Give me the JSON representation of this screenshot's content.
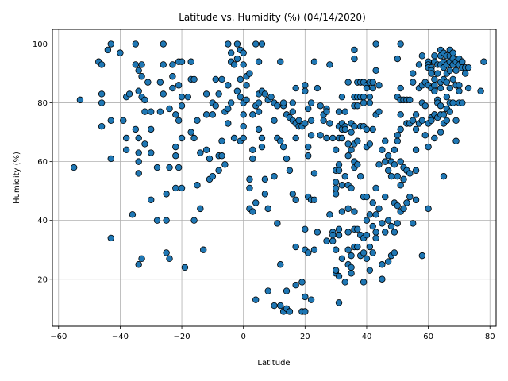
{
  "chart_data": {
    "type": "scatter",
    "title": "Latitude vs. Humidity (%) (04/14/2020)",
    "xlabel": "Latitude",
    "ylabel": "Humidity (%)",
    "xlim": [
      -62,
      82
    ],
    "ylim": [
      4,
      105
    ],
    "xticks": [
      -60,
      -40,
      -20,
      0,
      20,
      40,
      60,
      80
    ],
    "yticks": [
      20,
      40,
      60,
      80,
      100
    ],
    "grid": true,
    "marker_color": "#1f77b4",
    "edge_color": "#000000",
    "points": [
      [
        -55,
        58
      ],
      [
        -53,
        81
      ],
      [
        -47,
        94
      ],
      [
        -46,
        93
      ],
      [
        -46,
        80
      ],
      [
        -46,
        83
      ],
      [
        -46,
        72
      ],
      [
        -44,
        98
      ],
      [
        -43,
        100
      ],
      [
        -43,
        74
      ],
      [
        -43,
        61
      ],
      [
        -43,
        34
      ],
      [
        -40,
        97
      ],
      [
        -39,
        74
      ],
      [
        -38,
        82
      ],
      [
        -38,
        68
      ],
      [
        -38,
        64
      ],
      [
        -37,
        83
      ],
      [
        -36,
        42
      ],
      [
        -35,
        93
      ],
      [
        -35,
        71
      ],
      [
        -35,
        100
      ],
      [
        -34,
        25
      ],
      [
        -34,
        84
      ],
      [
        -34,
        91
      ],
      [
        -34,
        68
      ],
      [
        -34,
        63
      ],
      [
        -34,
        60
      ],
      [
        -34,
        56
      ],
      [
        -33,
        93
      ],
      [
        -33,
        89
      ],
      [
        -33,
        82
      ],
      [
        -33,
        27
      ],
      [
        -32,
        77
      ],
      [
        -32,
        66
      ],
      [
        -32,
        81
      ],
      [
        -31,
        87
      ],
      [
        -30,
        71
      ],
      [
        -30,
        77
      ],
      [
        -30,
        63
      ],
      [
        -30,
        47
      ],
      [
        -28,
        58
      ],
      [
        -28,
        40
      ],
      [
        -27,
        77
      ],
      [
        -27,
        87
      ],
      [
        -26,
        100
      ],
      [
        -26,
        93
      ],
      [
        -26,
        83
      ],
      [
        -25,
        40
      ],
      [
        -25,
        49
      ],
      [
        -25,
        29
      ],
      [
        -24,
        78
      ],
      [
        -24,
        58
      ],
      [
        -24,
        27
      ],
      [
        -23,
        85
      ],
      [
        -23,
        89
      ],
      [
        -23,
        93
      ],
      [
        -22,
        76
      ],
      [
        -22,
        65
      ],
      [
        -22,
        62
      ],
      [
        -22,
        51
      ],
      [
        -21,
        58
      ],
      [
        -21,
        86
      ],
      [
        -21,
        94
      ],
      [
        -21,
        74
      ],
      [
        -20,
        94
      ],
      [
        -20,
        68
      ],
      [
        -20,
        79
      ],
      [
        -20,
        82
      ],
      [
        -20,
        51
      ],
      [
        -19,
        24
      ],
      [
        -18,
        82
      ],
      [
        -17,
        88
      ],
      [
        -17,
        94
      ],
      [
        -17,
        70
      ],
      [
        -16,
        88
      ],
      [
        -16,
        68
      ],
      [
        -16,
        40
      ],
      [
        -15,
        52
      ],
      [
        -15,
        74
      ],
      [
        -14,
        63
      ],
      [
        -14,
        44
      ],
      [
        -13,
        30
      ],
      [
        -12,
        64
      ],
      [
        -12,
        76
      ],
      [
        -12,
        83
      ],
      [
        -11,
        54
      ],
      [
        -11,
        61
      ],
      [
        -10,
        55
      ],
      [
        -10,
        76
      ],
      [
        -10,
        80
      ],
      [
        -9,
        79
      ],
      [
        -9,
        88
      ],
      [
        -8,
        57
      ],
      [
        -8,
        62
      ],
      [
        -8,
        83
      ],
      [
        -7,
        62
      ],
      [
        -7,
        88
      ],
      [
        -7,
        67
      ],
      [
        -6,
        59
      ],
      [
        -6,
        77
      ],
      [
        -5,
        86
      ],
      [
        -5,
        100
      ],
      [
        -5,
        73
      ],
      [
        -5,
        78
      ],
      [
        -4,
        97
      ],
      [
        -4,
        94
      ],
      [
        -4,
        80
      ],
      [
        -3,
        93
      ],
      [
        -3,
        68
      ],
      [
        -2,
        95
      ],
      [
        -2,
        100
      ],
      [
        -2,
        84
      ],
      [
        -1,
        98
      ],
      [
        -1,
        88
      ],
      [
        -1,
        67
      ],
      [
        -1,
        82
      ],
      [
        0,
        97
      ],
      [
        0,
        80
      ],
      [
        0,
        93
      ],
      [
        0,
        76
      ],
      [
        0,
        72
      ],
      [
        0,
        68
      ],
      [
        1,
        86
      ],
      [
        1,
        89
      ],
      [
        1,
        81
      ],
      [
        2,
        90
      ],
      [
        2,
        44
      ],
      [
        2,
        51
      ],
      [
        2,
        54
      ],
      [
        3,
        43
      ],
      [
        3,
        64
      ],
      [
        3,
        61
      ],
      [
        3,
        76
      ],
      [
        4,
        100
      ],
      [
        4,
        46
      ],
      [
        4,
        79
      ],
      [
        4,
        13
      ],
      [
        5,
        80
      ],
      [
        5,
        83
      ],
      [
        5,
        94
      ],
      [
        5,
        77
      ],
      [
        5,
        71
      ],
      [
        6,
        100
      ],
      [
        6,
        68
      ],
      [
        6,
        65
      ],
      [
        6,
        84
      ],
      [
        7,
        49
      ],
      [
        7,
        83
      ],
      [
        7,
        54
      ],
      [
        8,
        81
      ],
      [
        8,
        44
      ],
      [
        8,
        16
      ],
      [
        9,
        82
      ],
      [
        10,
        74
      ],
      [
        10,
        55
      ],
      [
        10,
        11
      ],
      [
        10,
        80
      ],
      [
        11,
        79
      ],
      [
        11,
        68
      ],
      [
        11,
        39
      ],
      [
        12,
        11
      ],
      [
        12,
        94
      ],
      [
        12,
        25
      ],
      [
        12,
        67
      ],
      [
        13,
        79
      ],
      [
        13,
        80
      ],
      [
        13,
        65
      ],
      [
        13,
        9
      ],
      [
        14,
        10
      ],
      [
        14,
        76
      ],
      [
        14,
        61
      ],
      [
        14,
        16
      ],
      [
        15,
        75
      ],
      [
        15,
        57
      ],
      [
        15,
        9
      ],
      [
        16,
        77
      ],
      [
        16,
        74
      ],
      [
        16,
        49
      ],
      [
        16,
        80
      ],
      [
        17,
        68
      ],
      [
        17,
        85
      ],
      [
        17,
        73
      ],
      [
        17,
        31
      ],
      [
        17,
        47
      ],
      [
        17,
        18
      ],
      [
        18,
        72
      ],
      [
        18,
        74
      ],
      [
        19,
        19
      ],
      [
        19,
        9
      ],
      [
        19,
        72
      ],
      [
        20,
        86
      ],
      [
        20,
        84
      ],
      [
        20,
        37
      ],
      [
        20,
        30
      ],
      [
        20,
        14
      ],
      [
        20,
        9
      ],
      [
        20,
        73
      ],
      [
        21,
        78
      ],
      [
        21,
        62
      ],
      [
        21,
        65
      ],
      [
        21,
        48
      ],
      [
        21,
        29
      ],
      [
        22,
        74
      ],
      [
        22,
        80
      ],
      [
        22,
        69
      ],
      [
        22,
        47
      ],
      [
        22,
        13
      ],
      [
        23,
        56
      ],
      [
        23,
        94
      ],
      [
        23,
        30
      ],
      [
        23,
        47
      ],
      [
        24,
        85
      ],
      [
        24,
        36
      ],
      [
        25,
        69
      ],
      [
        25,
        79
      ],
      [
        26,
        76
      ],
      [
        26,
        74
      ],
      [
        27,
        78
      ],
      [
        27,
        77
      ],
      [
        27,
        68
      ],
      [
        27,
        33
      ],
      [
        28,
        42
      ],
      [
        28,
        93
      ],
      [
        28,
        73
      ],
      [
        29,
        68
      ],
      [
        29,
        36
      ],
      [
        29,
        33
      ],
      [
        29,
        35
      ],
      [
        30,
        53
      ],
      [
        30,
        51
      ],
      [
        30,
        49
      ],
      [
        30,
        64
      ],
      [
        30,
        57
      ],
      [
        30,
        22
      ],
      [
        30,
        23
      ],
      [
        30,
        30
      ],
      [
        31,
        72
      ],
      [
        31,
        77
      ],
      [
        31,
        68
      ],
      [
        31,
        59
      ],
      [
        31,
        37
      ],
      [
        31,
        35
      ],
      [
        31,
        57
      ],
      [
        31,
        21
      ],
      [
        31,
        12
      ],
      [
        32,
        82
      ],
      [
        32,
        73
      ],
      [
        32,
        71
      ],
      [
        32,
        68
      ],
      [
        32,
        52
      ],
      [
        32,
        43
      ],
      [
        32,
        27
      ],
      [
        33,
        72
      ],
      [
        33,
        71
      ],
      [
        33,
        77
      ],
      [
        33,
        55
      ],
      [
        33,
        19
      ],
      [
        34,
        87
      ],
      [
        34,
        66
      ],
      [
        34,
        62
      ],
      [
        34,
        52
      ],
      [
        34,
        44
      ],
      [
        34,
        36
      ],
      [
        34,
        30
      ],
      [
        34,
        25
      ],
      [
        35,
        73
      ],
      [
        35,
        70
      ],
      [
        35,
        64
      ],
      [
        35,
        51
      ],
      [
        35,
        28
      ],
      [
        35,
        24
      ],
      [
        35,
        22
      ],
      [
        36,
        95
      ],
      [
        36,
        98
      ],
      [
        36,
        82
      ],
      [
        36,
        79
      ],
      [
        36,
        72
      ],
      [
        36,
        66
      ],
      [
        36,
        60
      ],
      [
        36,
        58
      ],
      [
        36,
        43
      ],
      [
        36,
        37
      ],
      [
        36,
        31
      ],
      [
        37,
        87
      ],
      [
        37,
        82
      ],
      [
        37,
        79
      ],
      [
        37,
        67
      ],
      [
        37,
        59
      ],
      [
        37,
        37
      ],
      [
        37,
        31
      ],
      [
        38,
        87
      ],
      [
        38,
        82
      ],
      [
        38,
        72
      ],
      [
        38,
        55
      ],
      [
        38,
        35
      ],
      [
        38,
        28
      ],
      [
        39,
        87
      ],
      [
        39,
        82
      ],
      [
        39,
        80
      ],
      [
        39,
        72
      ],
      [
        39,
        48
      ],
      [
        39,
        34
      ],
      [
        39,
        29
      ],
      [
        39,
        19
      ],
      [
        40,
        86
      ],
      [
        40,
        85
      ],
      [
        40,
        71
      ],
      [
        40,
        65
      ],
      [
        40,
        48
      ],
      [
        40,
        40
      ],
      [
        40,
        35
      ],
      [
        40,
        27
      ],
      [
        41,
        87
      ],
      [
        41,
        82
      ],
      [
        41,
        80
      ],
      [
        41,
        66
      ],
      [
        41,
        42
      ],
      [
        41,
        31
      ],
      [
        41,
        23
      ],
      [
        42,
        87
      ],
      [
        42,
        85
      ],
      [
        42,
        71
      ],
      [
        42,
        46
      ],
      [
        42,
        38
      ],
      [
        42,
        29
      ],
      [
        43,
        100
      ],
      [
        43,
        91
      ],
      [
        43,
        76
      ],
      [
        43,
        51
      ],
      [
        43,
        42
      ],
      [
        43,
        36
      ],
      [
        43,
        34
      ],
      [
        44,
        86
      ],
      [
        44,
        77
      ],
      [
        44,
        59
      ],
      [
        44,
        44
      ],
      [
        45,
        64
      ],
      [
        45,
        25
      ],
      [
        45,
        20
      ],
      [
        45,
        39
      ],
      [
        46,
        67
      ],
      [
        46,
        60
      ],
      [
        46,
        48
      ],
      [
        46,
        36
      ],
      [
        47,
        62
      ],
      [
        47,
        57
      ],
      [
        47,
        40
      ],
      [
        47,
        26
      ],
      [
        48,
        60
      ],
      [
        48,
        55
      ],
      [
        48,
        38
      ],
      [
        48,
        28
      ],
      [
        49,
        64
      ],
      [
        49,
        59
      ],
      [
        49,
        46
      ],
      [
        49,
        36
      ],
      [
        49,
        29
      ],
      [
        50,
        82
      ],
      [
        50,
        95
      ],
      [
        50,
        69
      ],
      [
        50,
        67
      ],
      [
        50,
        55
      ],
      [
        50,
        45
      ],
      [
        50,
        39
      ],
      [
        51,
        100
      ],
      [
        51,
        85
      ],
      [
        51,
        81
      ],
      [
        51,
        76
      ],
      [
        51,
        71
      ],
      [
        51,
        60
      ],
      [
        51,
        52
      ],
      [
        51,
        43
      ],
      [
        52,
        81
      ],
      [
        52,
        58
      ],
      [
        52,
        54
      ],
      [
        52,
        44
      ],
      [
        53,
        81
      ],
      [
        53,
        73
      ],
      [
        53,
        57
      ],
      [
        53,
        46
      ],
      [
        54,
        81
      ],
      [
        54,
        73
      ],
      [
        54,
        56
      ],
      [
        54,
        48
      ],
      [
        55,
        90
      ],
      [
        55,
        87
      ],
      [
        55,
        74
      ],
      [
        55,
        39
      ],
      [
        56,
        76
      ],
      [
        56,
        71
      ],
      [
        56,
        64
      ],
      [
        56,
        57
      ],
      [
        56,
        47
      ],
      [
        57,
        93
      ],
      [
        57,
        85
      ],
      [
        57,
        73
      ],
      [
        58,
        96
      ],
      [
        58,
        86
      ],
      [
        58,
        80
      ],
      [
        58,
        74
      ],
      [
        58,
        28
      ],
      [
        59,
        87
      ],
      [
        59,
        79
      ],
      [
        59,
        69
      ],
      [
        60,
        94
      ],
      [
        60,
        93
      ],
      [
        60,
        92
      ],
      [
        60,
        86
      ],
      [
        60,
        73
      ],
      [
        60,
        65
      ],
      [
        60,
        44
      ],
      [
        61,
        92
      ],
      [
        61,
        91
      ],
      [
        61,
        90
      ],
      [
        61,
        85
      ],
      [
        61,
        75
      ],
      [
        61,
        74
      ],
      [
        62,
        96
      ],
      [
        62,
        94
      ],
      [
        62,
        88
      ],
      [
        62,
        86
      ],
      [
        62,
        84
      ],
      [
        62,
        76
      ],
      [
        62,
        68
      ],
      [
        63,
        93
      ],
      [
        63,
        90
      ],
      [
        63,
        81
      ],
      [
        63,
        80
      ],
      [
        63,
        75
      ],
      [
        64,
        98
      ],
      [
        64,
        96
      ],
      [
        64,
        93
      ],
      [
        64,
        87
      ],
      [
        64,
        85
      ],
      [
        64,
        79
      ],
      [
        64,
        76
      ],
      [
        64,
        70
      ],
      [
        65,
        97
      ],
      [
        65,
        94
      ],
      [
        65,
        92
      ],
      [
        65,
        88
      ],
      [
        65,
        76
      ],
      [
        65,
        73
      ],
      [
        65,
        55
      ],
      [
        66,
        96
      ],
      [
        66,
        93
      ],
      [
        66,
        90
      ],
      [
        66,
        87
      ],
      [
        66,
        82
      ],
      [
        66,
        78
      ],
      [
        66,
        74
      ],
      [
        67,
        98
      ],
      [
        67,
        96
      ],
      [
        67,
        94
      ],
      [
        67,
        91
      ],
      [
        67,
        85
      ],
      [
        67,
        80
      ],
      [
        67,
        77
      ],
      [
        68,
        97
      ],
      [
        68,
        95
      ],
      [
        68,
        93
      ],
      [
        68,
        88
      ],
      [
        68,
        80
      ],
      [
        69,
        94
      ],
      [
        69,
        91
      ],
      [
        69,
        86
      ],
      [
        69,
        74
      ],
      [
        69,
        67
      ],
      [
        70,
        95
      ],
      [
        70,
        93
      ],
      [
        70,
        86
      ],
      [
        70,
        84
      ],
      [
        70,
        80
      ],
      [
        71,
        94
      ],
      [
        71,
        92
      ],
      [
        71,
        80
      ],
      [
        72,
        92
      ],
      [
        72,
        90
      ],
      [
        73,
        85
      ],
      [
        73,
        92
      ],
      [
        77,
        84
      ],
      [
        78,
        94
      ]
    ]
  }
}
